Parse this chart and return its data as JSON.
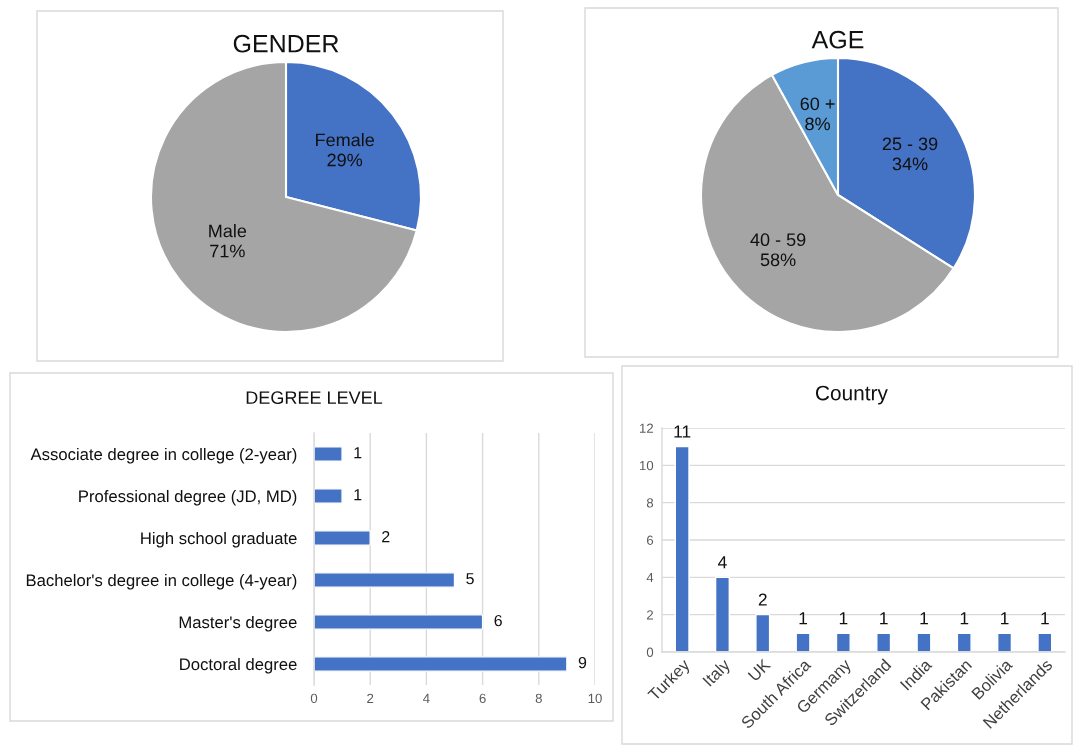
{
  "chart_data": [
    {
      "type": "pie",
      "title": "GENDER",
      "categories": [
        "Female",
        "Male"
      ],
      "values": [
        29,
        71
      ],
      "colors": [
        "#4472c4",
        "#a5a5a5"
      ],
      "value_labels": [
        "29%",
        "71%"
      ]
    },
    {
      "type": "pie",
      "title": "AGE",
      "categories": [
        "25 - 39",
        "40 - 59",
        "60 +"
      ],
      "values": [
        34,
        58,
        8
      ],
      "colors": [
        "#4472c4",
        "#a5a5a5",
        "#5b9bd5"
      ],
      "value_labels": [
        "34%",
        "58%",
        "8%"
      ]
    },
    {
      "type": "bar",
      "orientation": "horizontal",
      "title": "DEGREE LEVEL",
      "categories": [
        "Associate degree in college (2-year)",
        "Professional degree (JD, MD)",
        "High school graduate",
        "Bachelor's degree in college (4-year)",
        "Master's degree",
        "Doctoral degree"
      ],
      "values": [
        1,
        1,
        2,
        5,
        6,
        9
      ],
      "color": "#4472c4",
      "xlim": [
        0,
        10
      ],
      "xticks": [
        0,
        2,
        4,
        6,
        8,
        10
      ],
      "grid": "x",
      "data_labels": true
    },
    {
      "type": "bar",
      "title": "Country",
      "categories": [
        "Turkey",
        "Italy",
        "UK",
        "South Africa",
        "Germany",
        "Switzerland",
        "India",
        "Pakistan",
        "Bolivia",
        "Netherlands"
      ],
      "values": [
        11,
        4,
        2,
        1,
        1,
        1,
        1,
        1,
        1,
        1
      ],
      "color": "#4472c4",
      "ylim": [
        0,
        12
      ],
      "yticks": [
        0,
        2,
        4,
        6,
        8,
        10,
        12
      ],
      "grid": "y",
      "data_labels": true
    }
  ]
}
